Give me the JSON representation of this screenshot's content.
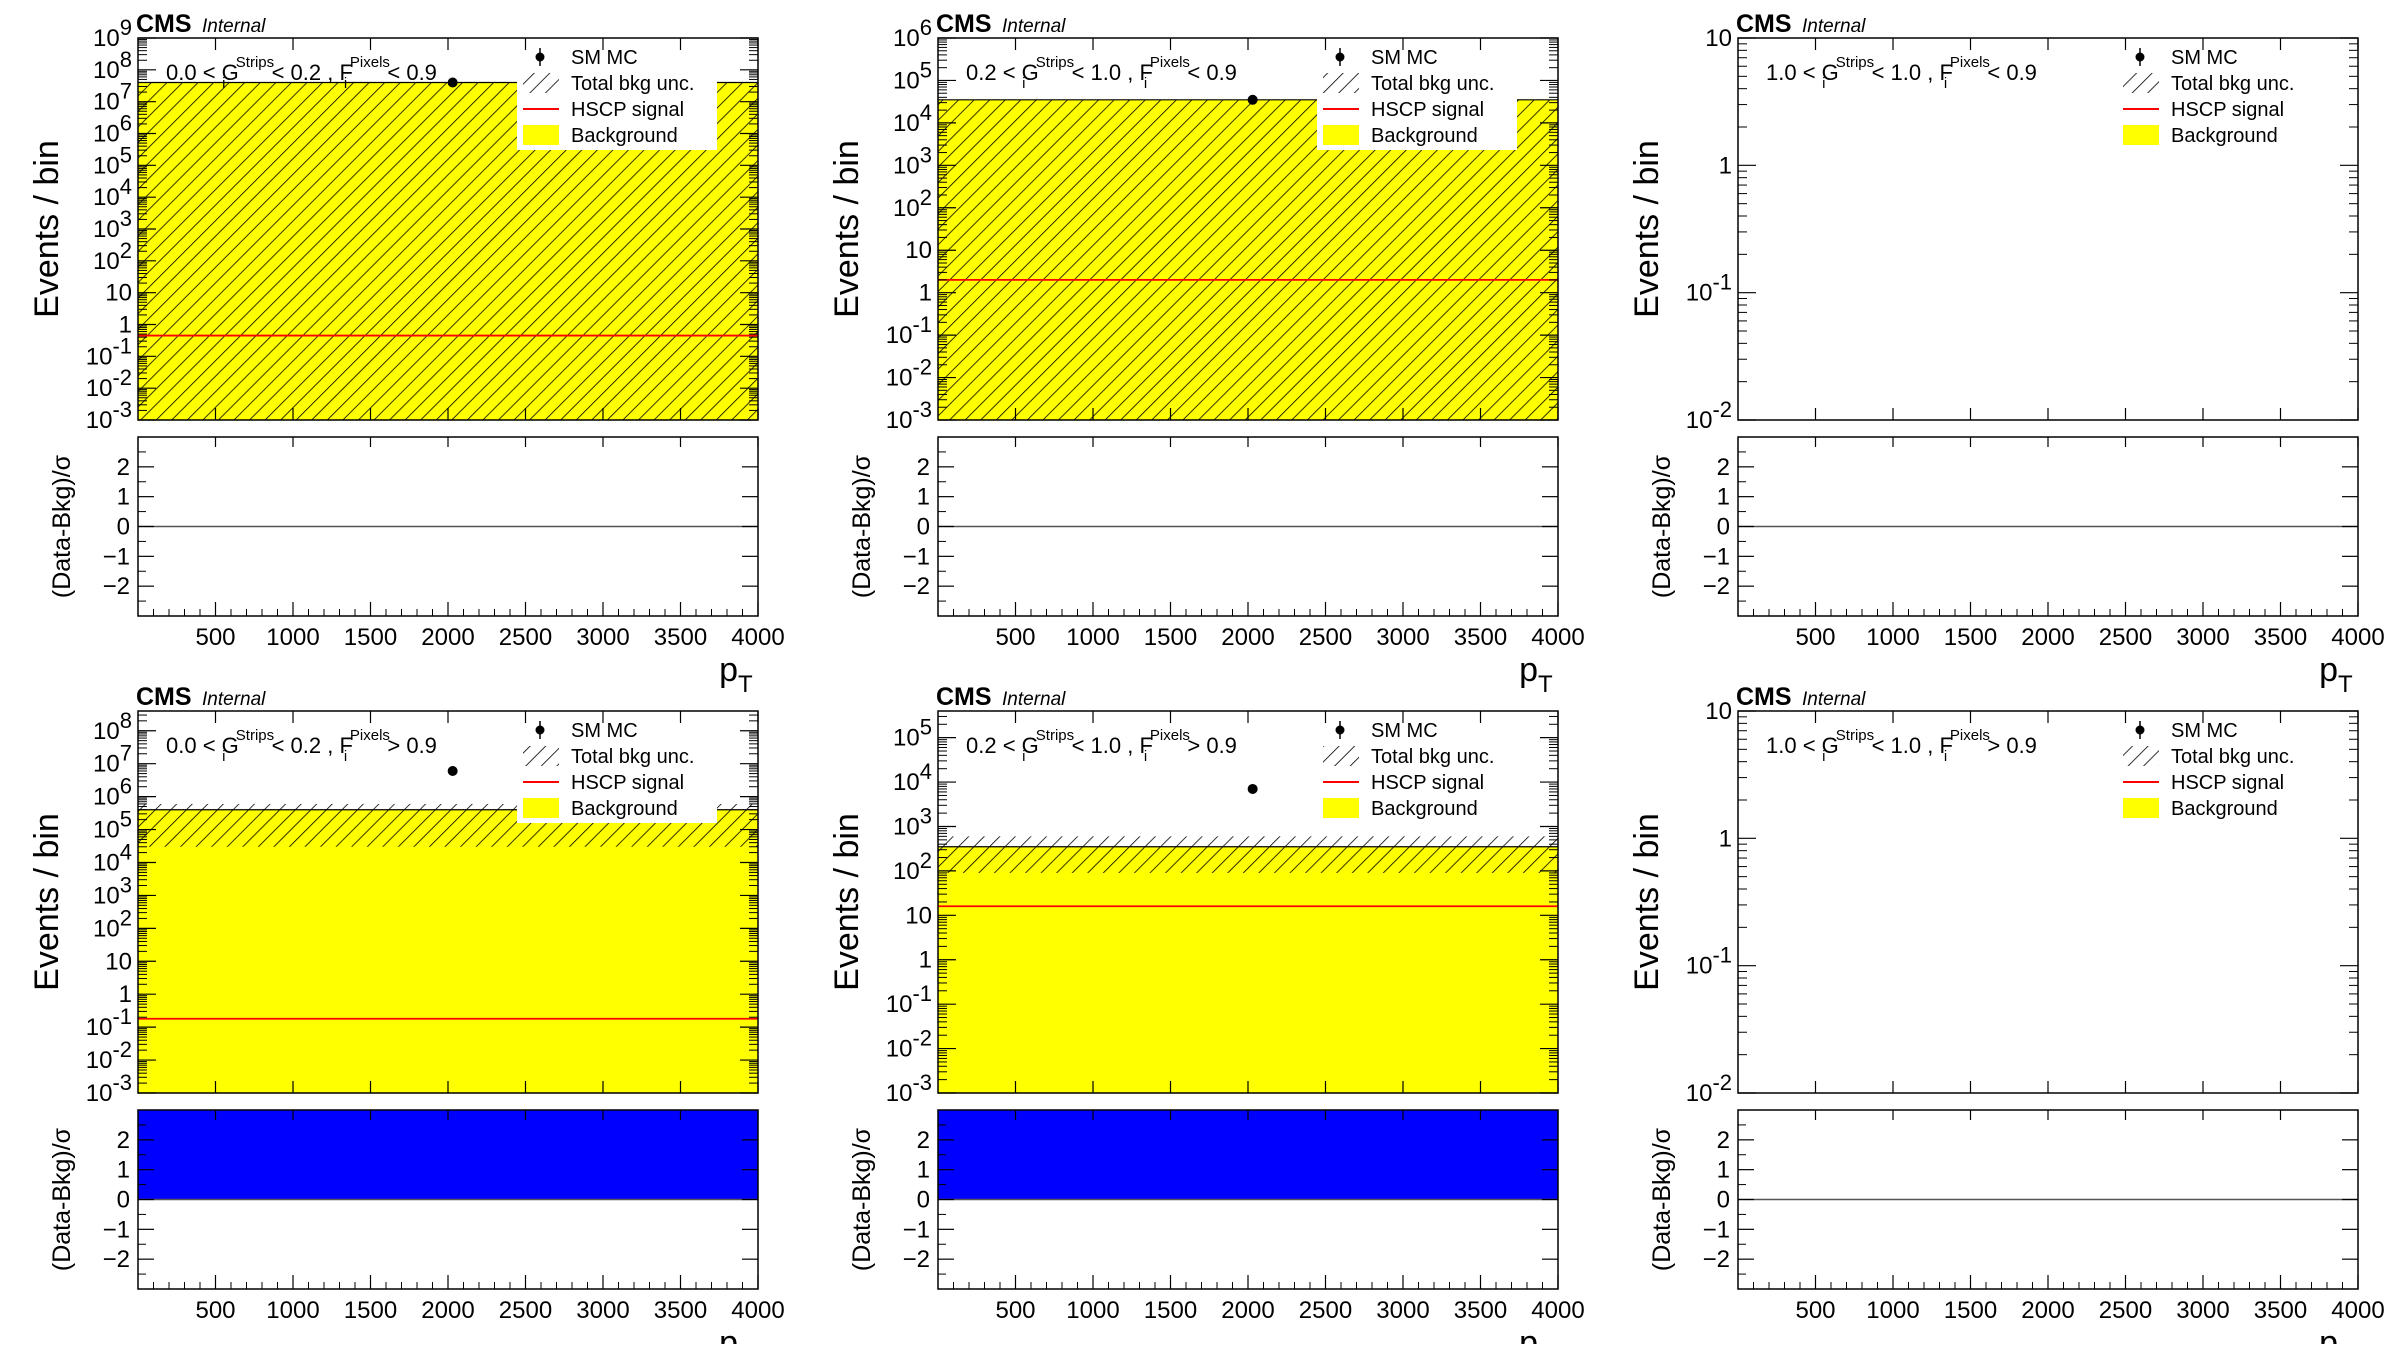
{
  "chart_data": [
    {
      "type": "area",
      "cms_label": "CMS",
      "internal_label": "Internal",
      "selection": {
        "g_low": "0.0",
        "g_high": "0.2",
        "g_sup": "Strips",
        "f_sup": "Pixels",
        "f_op": "<",
        "f_val": "0.9"
      },
      "ylabel": "Events / bin",
      "ylabel_ratio": "(Data-Bkg)/σ",
      "xlabel_main": "p",
      "xlabel_sub": "T",
      "xlim": [
        0,
        4000
      ],
      "x_ticks": [
        500,
        1000,
        1500,
        2000,
        2500,
        3000,
        3500,
        4000
      ],
      "ylim_exp": [
        -3,
        9
      ],
      "y_ticks": [
        {
          "v": -3,
          "b": "10",
          "e": "-3"
        },
        {
          "v": -2,
          "b": "10",
          "e": "-2"
        },
        {
          "v": -1,
          "b": "10",
          "e": "-1"
        },
        {
          "v": 0,
          "b": "1",
          "e": ""
        },
        {
          "v": 1,
          "b": "10",
          "e": ""
        },
        {
          "v": 2,
          "b": "10",
          "e": "2"
        },
        {
          "v": 3,
          "b": "10",
          "e": "3"
        },
        {
          "v": 4,
          "b": "10",
          "e": "4"
        },
        {
          "v": 5,
          "b": "10",
          "e": "5"
        },
        {
          "v": 6,
          "b": "10",
          "e": "6"
        },
        {
          "v": 7,
          "b": "10",
          "e": "7"
        },
        {
          "v": 8,
          "b": "10",
          "e": "8"
        },
        {
          "v": 9,
          "b": "10",
          "e": "9"
        }
      ],
      "background": 40000000.0,
      "unc_low": 0.001,
      "unc_high": 40000000.0,
      "signal": 0.45,
      "data_point": {
        "x": 2030,
        "y": 40000000.0
      },
      "ratio_ylim": [
        -3,
        3
      ],
      "ratio_ticks": [
        -2,
        -1,
        0,
        1,
        2
      ],
      "ratio_band": null,
      "legend": [
        "SM MC",
        "Total bkg unc.",
        "HSCP signal",
        "Background"
      ],
      "legend_box": "opaque",
      "colors": {
        "background": "#ffff00",
        "signal": "#ff0000",
        "ratio": "#0000ff"
      }
    },
    {
      "type": "area",
      "cms_label": "CMS",
      "internal_label": "Internal",
      "selection": {
        "g_low": "0.2",
        "g_high": "1.0",
        "g_sup": "Strips",
        "f_sup": "Pixels",
        "f_op": "<",
        "f_val": "0.9"
      },
      "ylabel": "Events / bin",
      "ylabel_ratio": "(Data-Bkg)/σ",
      "xlabel_main": "p",
      "xlabel_sub": "T",
      "xlim": [
        0,
        4000
      ],
      "x_ticks": [
        500,
        1000,
        1500,
        2000,
        2500,
        3000,
        3500,
        4000
      ],
      "ylim_exp": [
        -3,
        6
      ],
      "y_ticks": [
        {
          "v": -3,
          "b": "10",
          "e": "-3"
        },
        {
          "v": -2,
          "b": "10",
          "e": "-2"
        },
        {
          "v": -1,
          "b": "10",
          "e": "-1"
        },
        {
          "v": 0,
          "b": "1",
          "e": ""
        },
        {
          "v": 1,
          "b": "10",
          "e": ""
        },
        {
          "v": 2,
          "b": "10",
          "e": "2"
        },
        {
          "v": 3,
          "b": "10",
          "e": "3"
        },
        {
          "v": 4,
          "b": "10",
          "e": "4"
        },
        {
          "v": 5,
          "b": "10",
          "e": "5"
        },
        {
          "v": 6,
          "b": "10",
          "e": "6"
        }
      ],
      "background": 35000.0,
      "unc_low": 0.001,
      "unc_high": 35000.0,
      "signal": 2.0,
      "data_point": {
        "x": 2030,
        "y": 35000.0
      },
      "ratio_ylim": [
        -3,
        3
      ],
      "ratio_ticks": [
        -2,
        -1,
        0,
        1,
        2
      ],
      "ratio_band": null,
      "legend": [
        "SM MC",
        "Total bkg unc.",
        "HSCP signal",
        "Background"
      ],
      "legend_box": "opaque",
      "colors": {
        "background": "#ffff00",
        "signal": "#ff0000",
        "ratio": "#0000ff"
      }
    },
    {
      "type": "area",
      "cms_label": "CMS",
      "internal_label": "Internal",
      "selection": {
        "g_low": "1.0",
        "g_high": "1.0",
        "g_sup": "Strips",
        "f_sup": "Pixels",
        "f_op": "<",
        "f_val": "0.9"
      },
      "ylabel": "Events / bin",
      "ylabel_ratio": "(Data-Bkg)/σ",
      "xlabel_main": "p",
      "xlabel_sub": "T",
      "xlim": [
        0,
        4000
      ],
      "x_ticks": [
        500,
        1000,
        1500,
        2000,
        2500,
        3000,
        3500,
        4000
      ],
      "ylim_exp": [
        -2,
        1
      ],
      "y_ticks": [
        {
          "v": -2,
          "b": "10",
          "e": "-2"
        },
        {
          "v": -1,
          "b": "10",
          "e": "-1"
        },
        {
          "v": 0,
          "b": "1",
          "e": ""
        },
        {
          "v": 1,
          "b": "10",
          "e": ""
        }
      ],
      "background": null,
      "unc_low": null,
      "unc_high": null,
      "signal": null,
      "data_point": null,
      "ratio_ylim": [
        -3,
        3
      ],
      "ratio_ticks": [
        -2,
        -1,
        0,
        1,
        2
      ],
      "ratio_band": null,
      "legend": [
        "SM MC",
        "Total bkg unc.",
        "HSCP signal",
        "Background"
      ],
      "legend_box": "transparent",
      "colors": {
        "background": "#ffff00",
        "signal": "#ff0000",
        "ratio": "#0000ff"
      }
    },
    {
      "type": "area",
      "cms_label": "CMS",
      "internal_label": "Internal",
      "selection": {
        "g_low": "0.0",
        "g_high": "0.2",
        "g_sup": "Strips",
        "f_sup": "Pixels",
        "f_op": ">",
        "f_val": "0.9"
      },
      "ylabel": "Events / bin",
      "ylabel_ratio": "(Data-Bkg)/σ",
      "xlabel_main": "p",
      "xlabel_sub": "T",
      "xlim": [
        0,
        4000
      ],
      "x_ticks": [
        500,
        1000,
        1500,
        2000,
        2500,
        3000,
        3500,
        4000
      ],
      "ylim_exp": [
        -3,
        8.6
      ],
      "y_ticks": [
        {
          "v": -3,
          "b": "10",
          "e": "-3"
        },
        {
          "v": -2,
          "b": "10",
          "e": "-2"
        },
        {
          "v": -1,
          "b": "10",
          "e": "-1"
        },
        {
          "v": 0,
          "b": "1",
          "e": ""
        },
        {
          "v": 1,
          "b": "10",
          "e": ""
        },
        {
          "v": 2,
          "b": "10",
          "e": "2"
        },
        {
          "v": 3,
          "b": "10",
          "e": "3"
        },
        {
          "v": 4,
          "b": "10",
          "e": "4"
        },
        {
          "v": 5,
          "b": "10",
          "e": "5"
        },
        {
          "v": 6,
          "b": "10",
          "e": "6"
        },
        {
          "v": 7,
          "b": "10",
          "e": "7"
        },
        {
          "v": 8,
          "b": "10",
          "e": "8"
        }
      ],
      "background": 400000.0,
      "unc_low": 30000.0,
      "unc_high": 600000.0,
      "signal": 0.18,
      "data_point": {
        "x": 2030,
        "y": 6000000.0
      },
      "ratio_ylim": [
        -3,
        3
      ],
      "ratio_ticks": [
        -2,
        -1,
        0,
        1,
        2
      ],
      "ratio_band": [
        0,
        3
      ],
      "legend": [
        "SM MC",
        "Total bkg unc.",
        "HSCP signal",
        "Background"
      ],
      "legend_box": "opaque",
      "colors": {
        "background": "#ffff00",
        "signal": "#ff0000",
        "ratio": "#0000ff"
      }
    },
    {
      "type": "area",
      "cms_label": "CMS",
      "internal_label": "Internal",
      "selection": {
        "g_low": "0.2",
        "g_high": "1.0",
        "g_sup": "Strips",
        "f_sup": "Pixels",
        "f_op": ">",
        "f_val": "0.9"
      },
      "ylabel": "Events / bin",
      "ylabel_ratio": "(Data-Bkg)/σ",
      "xlabel_main": "p",
      "xlabel_sub": "T",
      "xlim": [
        0,
        4000
      ],
      "x_ticks": [
        500,
        1000,
        1500,
        2000,
        2500,
        3000,
        3500,
        4000
      ],
      "ylim_exp": [
        -3,
        5.6
      ],
      "y_ticks": [
        {
          "v": -3,
          "b": "10",
          "e": "-3"
        },
        {
          "v": -2,
          "b": "10",
          "e": "-2"
        },
        {
          "v": -1,
          "b": "10",
          "e": "-1"
        },
        {
          "v": 0,
          "b": "1",
          "e": ""
        },
        {
          "v": 1,
          "b": "10",
          "e": ""
        },
        {
          "v": 2,
          "b": "10",
          "e": "2"
        },
        {
          "v": 3,
          "b": "10",
          "e": "3"
        },
        {
          "v": 4,
          "b": "10",
          "e": "4"
        },
        {
          "v": 5,
          "b": "10",
          "e": "5"
        }
      ],
      "background": 350,
      "unc_low": 90,
      "unc_high": 600,
      "signal": 16,
      "data_point": {
        "x": 2030,
        "y": 7000
      },
      "ratio_ylim": [
        -3,
        3
      ],
      "ratio_ticks": [
        -2,
        -1,
        0,
        1,
        2
      ],
      "ratio_band": [
        0,
        3
      ],
      "legend": [
        "SM MC",
        "Total bkg unc.",
        "HSCP signal",
        "Background"
      ],
      "legend_box": "transparent",
      "colors": {
        "background": "#ffff00",
        "signal": "#ff0000",
        "ratio": "#0000ff"
      }
    },
    {
      "type": "area",
      "cms_label": "CMS",
      "internal_label": "Internal",
      "selection": {
        "g_low": "1.0",
        "g_high": "1.0",
        "g_sup": "Strips",
        "f_sup": "Pixels",
        "f_op": ">",
        "f_val": "0.9"
      },
      "ylabel": "Events / bin",
      "ylabel_ratio": "(Data-Bkg)/σ",
      "xlabel_main": "p",
      "xlabel_sub": "T",
      "xlim": [
        0,
        4000
      ],
      "x_ticks": [
        500,
        1000,
        1500,
        2000,
        2500,
        3000,
        3500,
        4000
      ],
      "ylim_exp": [
        -2,
        1
      ],
      "y_ticks": [
        {
          "v": -2,
          "b": "10",
          "e": "-2"
        },
        {
          "v": -1,
          "b": "10",
          "e": "-1"
        },
        {
          "v": 0,
          "b": "1",
          "e": ""
        },
        {
          "v": 1,
          "b": "10",
          "e": ""
        }
      ],
      "background": null,
      "unc_low": null,
      "unc_high": null,
      "signal": null,
      "data_point": null,
      "ratio_ylim": [
        -3,
        3
      ],
      "ratio_ticks": [
        -2,
        -1,
        0,
        1,
        2
      ],
      "ratio_band": null,
      "legend": [
        "SM MC",
        "Total bkg unc.",
        "HSCP signal",
        "Background"
      ],
      "legend_box": "transparent",
      "colors": {
        "background": "#ffff00",
        "signal": "#ff0000",
        "ratio": "#0000ff"
      }
    }
  ]
}
